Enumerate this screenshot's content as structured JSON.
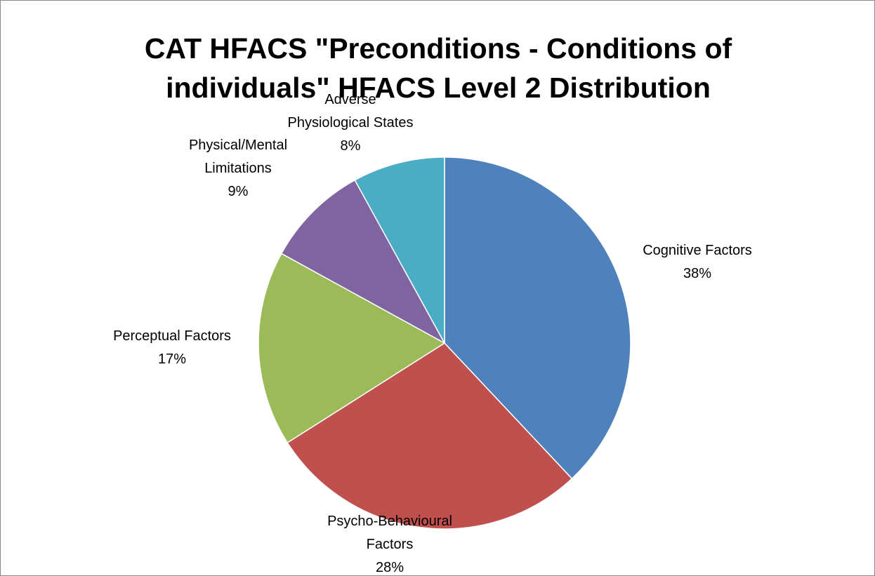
{
  "chart_data": {
    "type": "pie",
    "title": "CAT HFACS \"Preconditions - Conditions of individuals\" HFACS Level 2 Distribution",
    "categories": [
      "Cognitive Factors",
      "Psycho-Behavioural Factors",
      "Perceptual Factors",
      "Physical/Mental Limitations",
      "Adverse Physiological States"
    ],
    "values": [
      38,
      28,
      17,
      9,
      8
    ],
    "value_labels": [
      "38%",
      "28%",
      "17%",
      "9%",
      "8%"
    ],
    "colors": [
      "#4f81bd",
      "#c0504d",
      "#9bbb59",
      "#8064a2",
      "#4bacc6"
    ]
  }
}
